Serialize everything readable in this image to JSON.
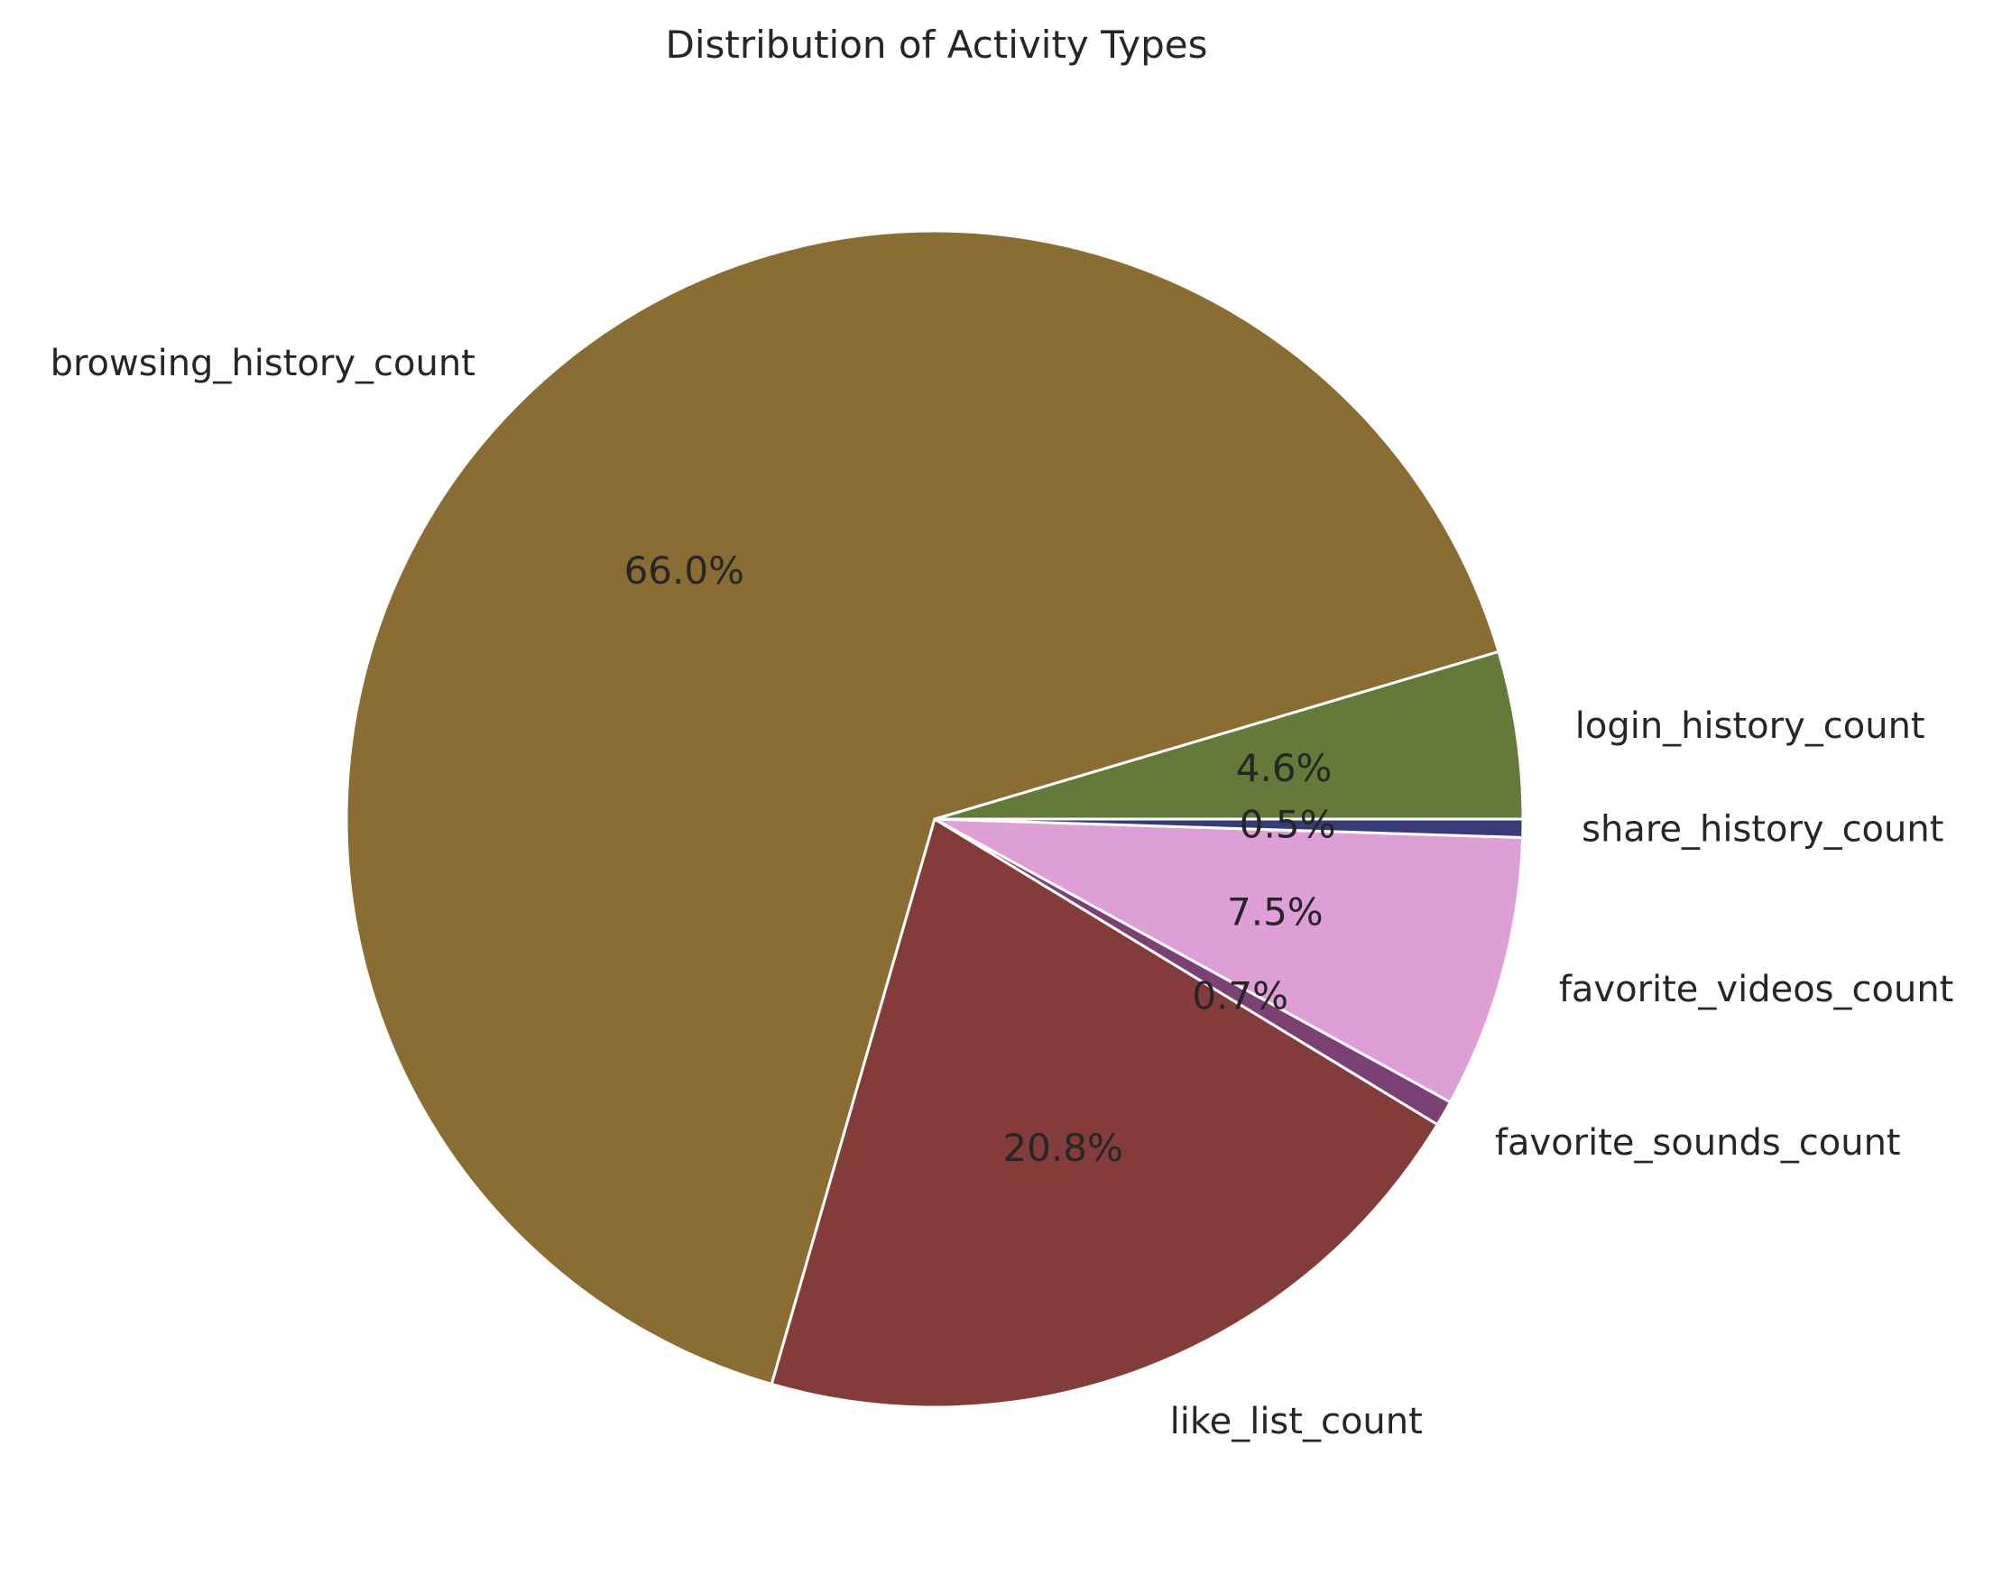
{
  "chart_data": {
    "type": "pie",
    "title": "Distribution of Activity Types",
    "slices": [
      {
        "label": "login_history_count",
        "value": 4.6,
        "pct_label": "4.6%",
        "color": "#647a3b"
      },
      {
        "label": "browsing_history_count",
        "value": 66.0,
        "pct_label": "66.0%",
        "color": "#8a6d33"
      },
      {
        "label": "like_list_count",
        "value": 20.8,
        "pct_label": "20.8%",
        "color": "#843c3b"
      },
      {
        "label": "favorite_sounds_count",
        "value": 0.7,
        "pct_label": "0.7%",
        "color": "#7b4173"
      },
      {
        "label": "favorite_videos_count",
        "value": 7.5,
        "pct_label": "7.5%",
        "color": "#de9ed6"
      },
      {
        "label": "share_history_count",
        "value": 0.5,
        "pct_label": "0.5%",
        "color": "#393b79"
      }
    ],
    "start_angle_deg": 0,
    "direction": "counterclockwise",
    "edge_color": "#ffffff"
  }
}
